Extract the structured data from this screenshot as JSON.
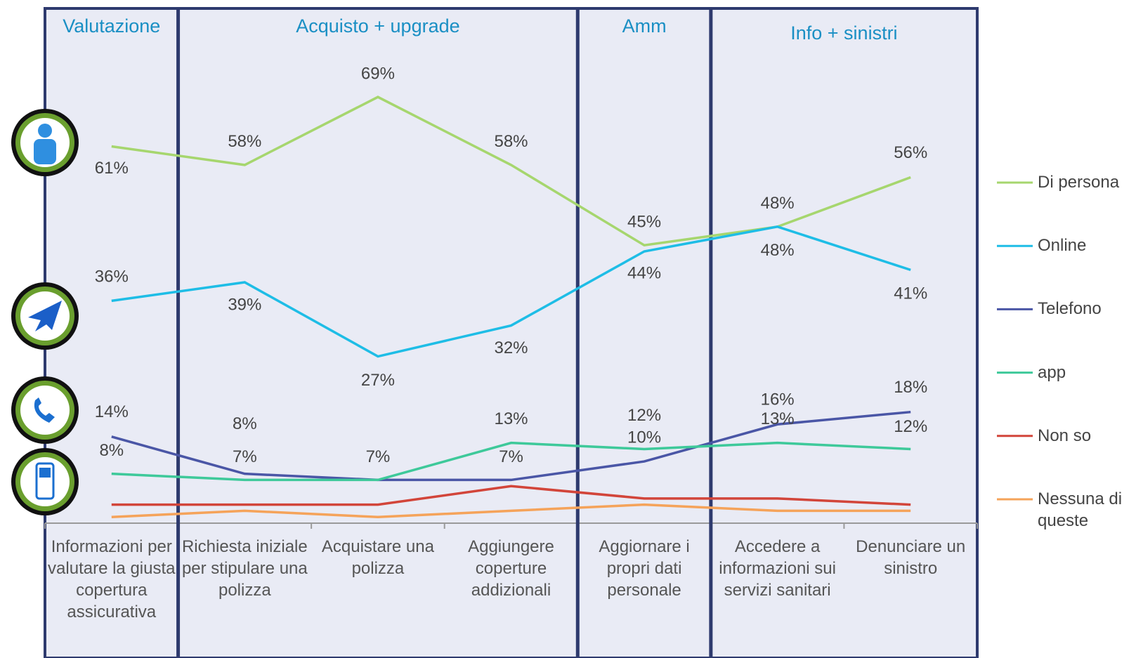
{
  "chart_data": {
    "type": "line",
    "groups": [
      {
        "name": "Valutazione",
        "categories": [
          "Informazioni per valutare la giusta copertura assicurativa"
        ]
      },
      {
        "name": "Acquisto + upgrade",
        "categories": [
          "Richiesta iniziale per stipulare una polizza",
          "Acquistare una polizza",
          "Aggiungere coperture addizionali"
        ]
      },
      {
        "name": "Amm",
        "categories": [
          "Aggiornare i propri dati personale"
        ]
      },
      {
        "name": "Info + sinistri",
        "categories": [
          "Accedere a informazioni sui servizi sanitari",
          "Denunciare un sinistro"
        ]
      }
    ],
    "series": [
      {
        "name": "Di persona",
        "color": "#a6d66e",
        "values": [
          61,
          58,
          69,
          58,
          45,
          48,
          56
        ],
        "value_labels": [
          "61%",
          "58%",
          "69%",
          "58%",
          "45%",
          "48%",
          "56%"
        ]
      },
      {
        "name": "Online",
        "color": "#1ebde6",
        "values": [
          36,
          39,
          27,
          32,
          44,
          48,
          41
        ],
        "value_labels": [
          "36%",
          "39%",
          "27%",
          "32%",
          "44%",
          "48%",
          "41%"
        ]
      },
      {
        "name": "Telefono",
        "color": "#4a56a6",
        "values": [
          14,
          8,
          7,
          7,
          10,
          16,
          18
        ],
        "value_labels": [
          "14%",
          "8%",
          "7%",
          "7%",
          "10%",
          "16%",
          "18%"
        ]
      },
      {
        "name": "app",
        "color": "#3ec99a",
        "values": [
          8,
          7,
          7,
          13,
          12,
          13,
          12
        ],
        "value_labels": [
          "8%",
          "7%",
          null,
          "13%",
          "12%",
          "13%",
          "12%"
        ]
      },
      {
        "name": "Non so",
        "color": "#d2453a",
        "values": [
          3,
          3,
          3,
          6,
          4,
          4,
          3
        ]
      },
      {
        "name": "Nessuna di queste",
        "color": "#f5a35a",
        "values": [
          1,
          2,
          1,
          2,
          3,
          2,
          2
        ]
      }
    ],
    "ylim": [
      0,
      83
    ]
  }
}
